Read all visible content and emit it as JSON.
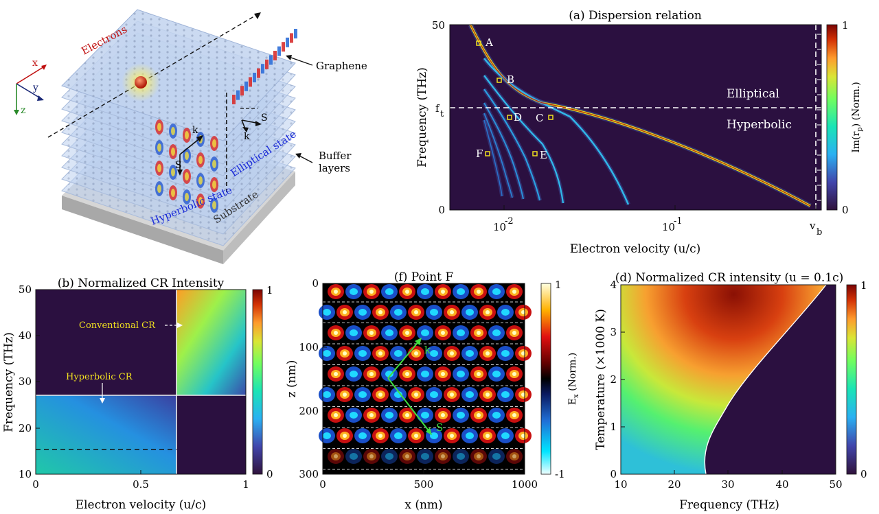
{
  "schematic": {
    "labels": {
      "electrons": "Electrons",
      "graphene": "Graphene",
      "buffer": "Buffer",
      "buffer2": "layers",
      "substrate": "Substrate",
      "hyperbolic_state": "Hyperbolic state",
      "elliptical_state": "Elliptical state",
      "k1": "k",
      "s1": "S",
      "k2": "k",
      "s2": "S",
      "ax_x": "x",
      "ax_y": "y",
      "ax_z": "z"
    }
  },
  "chart_data": [
    {
      "id": "a",
      "type": "heatmap",
      "title": "(a) Dispersion relation",
      "xlabel": "Electron velocity (u/c)",
      "ylabel": "Frequency (THz)",
      "xscale": "log",
      "x_tick_labels": [
        "10",
        "-2",
        "10",
        "-1",
        "v",
        "b"
      ],
      "y_tick_labels": [
        "50",
        "0"
      ],
      "ft_label": "f",
      "ft_sub": "t",
      "colorbar": {
        "label": "Im(r",
        "label_sub": "p",
        "label_end": ") (Norm.)",
        "ticks": [
          "1",
          "0"
        ]
      },
      "regions": [
        "Elliptical",
        "Hyperbolic"
      ],
      "points": [
        "A",
        "B",
        "C",
        "D",
        "E",
        "F"
      ]
    },
    {
      "id": "b",
      "type": "heatmap",
      "title": "(b) Normalized CR Intensity",
      "xlabel": "Electron velocity (u/c)",
      "ylabel": "Frequency (THz)",
      "xlim": [
        0,
        1
      ],
      "ylim": [
        10,
        50
      ],
      "x_tick_labels": [
        "0",
        "0.5",
        "1"
      ],
      "y_tick_labels": [
        "50",
        "40",
        "30",
        "20",
        "10"
      ],
      "colorbar": {
        "ticks": [
          "1",
          "0"
        ]
      },
      "annotations": [
        "Conventional CR",
        "Hyperbolic CR"
      ]
    },
    {
      "id": "f",
      "type": "heatmap",
      "title": "(f) Point F",
      "xlabel": "x (nm)",
      "ylabel": "z (nm)",
      "xlim": [
        0,
        1000
      ],
      "ylim": [
        0,
        300
      ],
      "x_tick_labels": [
        "0",
        "500",
        "1000"
      ],
      "y_tick_labels": [
        "0",
        "100",
        "200",
        "300"
      ],
      "colorbar": {
        "label": "E",
        "label_sub": "x",
        "label_end": " (Norm.)",
        "ticks": [
          "1",
          "-1"
        ]
      },
      "vectors": [
        "k",
        "S"
      ]
    },
    {
      "id": "d",
      "type": "heatmap",
      "title": "(d) Normalized CR intensity (u = 0.1c)",
      "xlabel": "Frequency (THz)",
      "ylabel": "Temperature (×1000 K)",
      "xlim": [
        10,
        50
      ],
      "ylim": [
        0,
        4
      ],
      "x_tick_labels": [
        "10",
        "20",
        "30",
        "40",
        "50"
      ],
      "y_tick_labels": [
        "4",
        "3",
        "2",
        "1",
        "0"
      ],
      "colorbar": {
        "ticks": [
          "1",
          "0"
        ]
      }
    }
  ]
}
